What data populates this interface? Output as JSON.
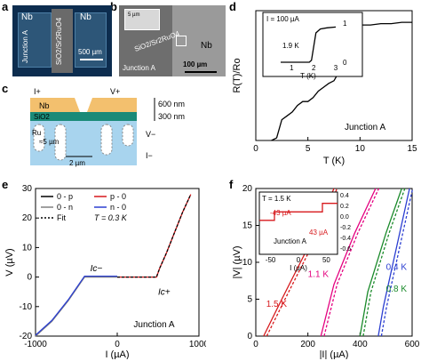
{
  "panels": {
    "a": "a",
    "b": "b",
    "c": "c",
    "d": "d",
    "e": "e",
    "f": "f"
  },
  "panel_a": {
    "nb_left": "Nb",
    "nb_right": "Nb",
    "junction": "Junction A",
    "center": "SiO2/Sr2RuO4",
    "scale": "500 µm"
  },
  "panel_b": {
    "center": "SiO2/Sr2RuO4",
    "nb": "Nb",
    "junction": "Junction A",
    "scale": "100 µm",
    "inset_scale": "5 µm"
  },
  "panel_c": {
    "i_plus": "I+",
    "v_plus": "V+",
    "v_minus": "V−",
    "i_minus": "I−",
    "nb": "Nb",
    "sio2": "SiO2",
    "ru": "Ru",
    "t600": "600 nm",
    "t300": "300 nm",
    "d5": "≈5 µm",
    "d2": "2 µm"
  },
  "colors": {
    "black": "#000000",
    "red": "#d7191c",
    "blue": "#2c3fd1",
    "pink": "#e4007f",
    "green": "#1a8a2a",
    "gray": "#808080"
  },
  "chart_data": [
    {
      "id": "d",
      "type": "line",
      "xlabel": "T (K)",
      "ylabel": "R(T)/Ro",
      "xlim": [
        0,
        15
      ],
      "xticks": [
        "0",
        "5",
        "10",
        "15"
      ],
      "annotation": "Junction A",
      "series": [
        {
          "x": [
            1.5,
            2,
            2.5,
            3,
            3.5,
            4,
            4.5,
            5,
            5.5,
            6,
            6.5,
            7,
            7.5,
            8,
            8.5,
            9,
            9.5,
            10,
            11,
            12,
            13,
            14,
            15
          ],
          "y": [
            0.0,
            0.02,
            0.16,
            0.19,
            0.22,
            0.27,
            0.3,
            0.3,
            0.33,
            0.38,
            0.41,
            0.44,
            0.46,
            0.53,
            0.62,
            0.7,
            0.88,
            0.89,
            0.89,
            0.9,
            0.9,
            0.91,
            0.91
          ]
        }
      ],
      "inset": {
        "label": "I = 100 µA",
        "xlabel": "T (K)",
        "ylabel": "R(T)/Ro",
        "xticks": [
          "1",
          "2",
          "3"
        ],
        "yticks": [
          "0",
          "1"
        ],
        "annotation": "1.9 K",
        "x": [
          0.5,
          1.0,
          1.5,
          1.8,
          1.9,
          2.0,
          2.1,
          2.3,
          2.6,
          3.0
        ],
        "y": [
          0,
          0,
          0,
          0,
          0.05,
          0.4,
          0.75,
          0.85,
          0.88,
          0.9
        ]
      }
    },
    {
      "id": "e",
      "type": "line",
      "xlabel": "I (µA)",
      "ylabel": "V (µV)",
      "xlim": [
        -1000,
        1000
      ],
      "ylim": [
        -20,
        30
      ],
      "xticks": [
        "-1000",
        "0",
        "1000"
      ],
      "yticks": [
        "-20",
        "-10",
        "0",
        "10",
        "20",
        "30"
      ],
      "legend": [
        {
          "name": "0 - p",
          "color": "#000000",
          "dash": false
        },
        {
          "name": "p - 0",
          "color": "#d7191c",
          "dash": false
        },
        {
          "name": "0 - n",
          "color": "#808080",
          "dash": false
        },
        {
          "name": "n - 0",
          "color": "#2c3fd1",
          "dash": false
        },
        {
          "name": "Fit",
          "color": "#000000",
          "dash": true
        }
      ],
      "fit_label": "T = 0.3 K",
      "ic_minus": "Ic−",
      "ic_plus": "Ic+",
      "annotation": "Junction A",
      "series": [
        {
          "name": "neg",
          "x": [
            -1000,
            -800,
            -600,
            -450,
            -400,
            -350,
            0
          ],
          "y": [
            -20,
            -15,
            -8,
            -2,
            0,
            0,
            0
          ]
        },
        {
          "name": "pos",
          "x": [
            0,
            400,
            480,
            520,
            600,
            700,
            800,
            900
          ],
          "y": [
            0,
            0,
            0,
            3,
            8,
            15,
            22,
            28
          ]
        }
      ]
    },
    {
      "id": "f",
      "type": "line",
      "xlabel": "|I| (µA)",
      "ylabel": "|V| (µV)",
      "xlim": [
        0,
        600
      ],
      "ylim": [
        0,
        20
      ],
      "xticks": [
        "0",
        "200",
        "400",
        "600"
      ],
      "yticks": [
        "0",
        "5",
        "10",
        "15",
        "20"
      ],
      "series": [
        {
          "name": "1.5 K",
          "color": "#d7191c",
          "x": [
            30,
            100,
            200,
            300
          ],
          "y": [
            0,
            5,
            12,
            20
          ]
        },
        {
          "name": "1.1 K",
          "color": "#e4007f",
          "x": [
            250,
            300,
            380,
            460
          ],
          "y": [
            0,
            7,
            14,
            20
          ]
        },
        {
          "name": "0.8 K",
          "color": "#1a8a2a",
          "x": [
            400,
            430,
            500,
            560
          ],
          "y": [
            0,
            6,
            14,
            20
          ]
        },
        {
          "name": "0.4 K",
          "color": "#2c3fd1",
          "x": [
            470,
            490,
            540,
            590
          ],
          "y": [
            0,
            4,
            12,
            20
          ]
        }
      ],
      "inset": {
        "label": "T = 1.5 K",
        "xlabel": "I (µA)",
        "ylabel": "V (µV)",
        "xticks": [
          "-50",
          "0",
          "50"
        ],
        "yticks": [
          "0.4",
          "0.2",
          "0.0",
          "-0.2",
          "-0.4",
          "-0.6"
        ],
        "ann_neg": "-43 µA",
        "ann_pos": "43 µA",
        "annotation": "Junction A"
      }
    }
  ]
}
